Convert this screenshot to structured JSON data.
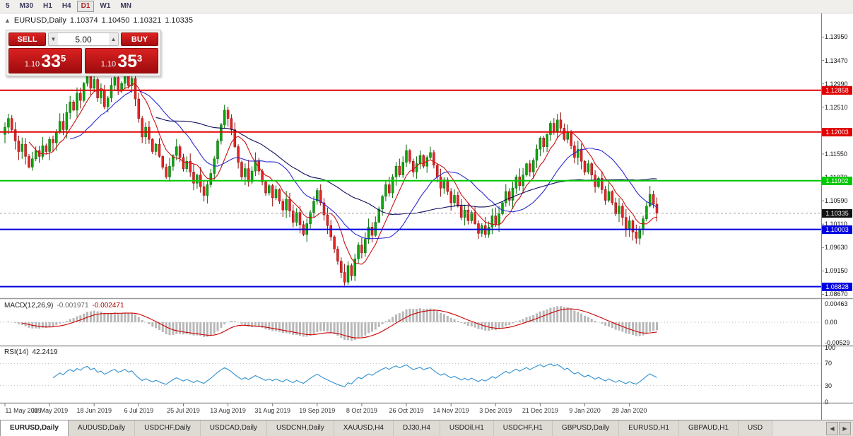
{
  "toolbar": {
    "timeframes": [
      {
        "label": "5",
        "active": false
      },
      {
        "label": "M30",
        "active": false
      },
      {
        "label": "H1",
        "active": false
      },
      {
        "label": "H4",
        "active": false
      },
      {
        "label": "D1",
        "active": true
      },
      {
        "label": "W1",
        "active": false
      },
      {
        "label": "MN",
        "active": false
      }
    ]
  },
  "header": {
    "collapse_icon": "▲",
    "symbol": "EURUSD,Daily",
    "open": "1.10374",
    "high": "1.10450",
    "low": "1.10321",
    "close": "1.10335"
  },
  "trade_widget": {
    "sell_label": "SELL",
    "buy_label": "BUY",
    "volume": "5.00",
    "spinner_up": "▲",
    "spinner_down": "▼",
    "bid": {
      "prefix": "1.10",
      "big": "33",
      "sup": "5"
    },
    "ask": {
      "prefix": "1.10",
      "big": "35",
      "sup": "3"
    }
  },
  "price_axis": {
    "ticks": [
      "1.13950",
      "1.13470",
      "1.12990",
      "1.12510",
      "1.12030",
      "1.11550",
      "1.11070",
      "1.10590",
      "1.10110",
      "1.09630",
      "1.09150",
      "1.08670"
    ]
  },
  "date_axis": [
    {
      "label": "11 May 2019",
      "bar": 0
    },
    {
      "label": "30 May 2019",
      "bar": 13
    },
    {
      "label": "18 Jun 2019",
      "bar": 26
    },
    {
      "label": "6 Jul 2019",
      "bar": 39
    },
    {
      "label": "25 Jul 2019",
      "bar": 52
    },
    {
      "label": "13 Aug 2019",
      "bar": 65
    },
    {
      "label": "31 Aug 2019",
      "bar": 78
    },
    {
      "label": "19 Sep 2019",
      "bar": 91
    },
    {
      "label": "8 Oct 2019",
      "bar": 104
    },
    {
      "label": "26 Oct 2019",
      "bar": 117
    },
    {
      "label": "14 Nov 2019",
      "bar": 130
    },
    {
      "label": "3 Dec 2019",
      "bar": 143
    },
    {
      "label": "21 Dec 2019",
      "bar": 156
    },
    {
      "label": "9 Jan 2020",
      "bar": 169
    },
    {
      "label": "28 Jan 2020",
      "bar": 182
    }
  ],
  "chart_data": {
    "type": "candlestick",
    "symbol": "EURUSD",
    "period": "Daily",
    "title": "EURUSD,Daily",
    "price_range": {
      "top": 1.1445,
      "bottom": 1.0859
    },
    "first_open": 1.1195,
    "closes": [
      1.121,
      1.1228,
      1.1205,
      1.1182,
      1.116,
      1.1175,
      1.115,
      1.1128,
      1.1145,
      1.1162,
      1.115,
      1.1172,
      1.116,
      1.1185,
      1.1178,
      1.12,
      1.1222,
      1.1205,
      1.124,
      1.1262,
      1.1245,
      1.128,
      1.1265,
      1.13,
      1.1318,
      1.129,
      1.1308,
      1.127,
      1.1285,
      1.1252,
      1.127,
      1.1296,
      1.1312,
      1.1285,
      1.13,
      1.1322,
      1.1295,
      1.131,
      1.1268,
      1.1228,
      1.119,
      1.121,
      1.1185,
      1.116,
      1.1175,
      1.115,
      1.1128,
      1.1108,
      1.113,
      1.1152,
      1.117,
      1.1148,
      1.1125,
      1.114,
      1.1118,
      1.1095,
      1.1112,
      1.1088,
      1.107,
      1.1092,
      1.1115,
      1.1145,
      1.1182,
      1.1215,
      1.1245,
      1.1228,
      1.1205,
      1.117,
      1.1138,
      1.1108,
      1.1125,
      1.1098,
      1.112,
      1.1142,
      1.112,
      1.1098,
      1.1075,
      1.109,
      1.1065,
      1.1082,
      1.1058,
      1.104,
      1.1062,
      1.1038,
      1.1015,
      1.1035,
      1.101,
      1.099,
      1.1012,
      1.1035,
      1.1058,
      1.108,
      1.1055,
      1.103,
      1.1008,
      1.0985,
      1.096,
      1.0935,
      1.0912,
      1.0892,
      1.0926,
      1.0905,
      1.094,
      1.0968,
      1.0952,
      1.098,
      1.1005,
      1.0988,
      1.1015,
      1.1042,
      1.1068,
      1.1092,
      1.1075,
      1.1108,
      1.113,
      1.1112,
      1.1138,
      1.1162,
      1.114,
      1.1118,
      1.1135,
      1.1152,
      1.113,
      1.1148,
      1.1158,
      1.1132,
      1.1108,
      1.1085,
      1.1102,
      1.1078,
      1.1055,
      1.107,
      1.1048,
      1.1025,
      1.104,
      1.1018,
      1.1035,
      1.1012,
      1.0992,
      1.1008,
      1.099,
      1.1005,
      1.1028,
      1.101,
      1.1032,
      1.1055,
      1.1078,
      1.106,
      1.1085,
      1.1108,
      1.109,
      1.1112,
      1.1135,
      1.1118,
      1.1142,
      1.1165,
      1.1188,
      1.117,
      1.1195,
      1.1218,
      1.1202,
      1.1225,
      1.1208,
      1.1185,
      1.12,
      1.1172,
      1.1148,
      1.1165,
      1.114,
      1.1118,
      1.1135,
      1.1112,
      1.1088,
      1.1105,
      1.1082,
      1.106,
      1.1078,
      1.1055,
      1.1032,
      1.1048,
      1.1025,
      1.1002,
      1.1018,
      1.0995,
      1.0982,
      1.1,
      1.1022,
      1.1048,
      1.1072,
      1.1052,
      1.10335
    ],
    "moving_averages": [
      {
        "period": 8,
        "color": "#cc1111"
      },
      {
        "period": 20,
        "color": "#2a2ad2"
      },
      {
        "period": 45,
        "color": "#0c0c5e"
      }
    ],
    "hlines": [
      {
        "price": 1.12858,
        "label": "1.12858",
        "color": "#e00000"
      },
      {
        "price": 1.12003,
        "label": "1.12003",
        "color": "#e00000"
      },
      {
        "price": 1.11002,
        "label": "1.11002",
        "color": "#00c800"
      },
      {
        "price": 1.10003,
        "label": "1.10003",
        "color": "#0000e0"
      },
      {
        "price": 1.08828,
        "label": "1.08828",
        "color": "#0000e0"
      }
    ],
    "current_price": {
      "price": 1.10335,
      "label": "1.10335",
      "color": "#111111"
    },
    "indicators": {
      "macd": {
        "title": "MACD(12,26,9)",
        "value_main": "-0.001971",
        "value_signal": "-0.002471",
        "axis": [
          "0.00463",
          "0.00",
          "-0.00529"
        ],
        "axis_values": [
          0.00463,
          0,
          -0.00529
        ],
        "range": 0.0058,
        "hist_color": "#b8b8b8",
        "signal_color": "#cc0000"
      },
      "rsi": {
        "title": "RSI(14)",
        "value": "42.2419",
        "axis": [
          "100",
          "70",
          "30",
          "0"
        ],
        "axis_values": [
          100,
          70,
          30,
          0
        ],
        "levels": [
          70,
          30
        ],
        "color": "#2f8fce"
      }
    },
    "candle_colors": {
      "up": "#0ea50e",
      "up_stroke": "#066806",
      "down": "#e62525",
      "down_stroke": "#8f0b0b"
    }
  },
  "tabs": {
    "items": [
      {
        "label": "EURUSD,Daily",
        "active": true
      },
      {
        "label": "AUDUSD,Daily",
        "active": false
      },
      {
        "label": "USDCHF,Daily",
        "active": false
      },
      {
        "label": "USDCAD,Daily",
        "active": false
      },
      {
        "label": "USDCNH,Daily",
        "active": false
      },
      {
        "label": "XAUUSD,H4",
        "active": false
      },
      {
        "label": "DJ30,H4",
        "active": false
      },
      {
        "label": "USDOil,H1",
        "active": false
      },
      {
        "label": "USDCHF,H1",
        "active": false
      },
      {
        "label": "GBPUSD,Daily",
        "active": false
      },
      {
        "label": "EURUSD,H1",
        "active": false
      },
      {
        "label": "GBPAUD,H1",
        "active": false
      },
      {
        "label": "USD",
        "active": false
      }
    ],
    "nav_prev": "◀",
    "nav_next": "▶"
  }
}
